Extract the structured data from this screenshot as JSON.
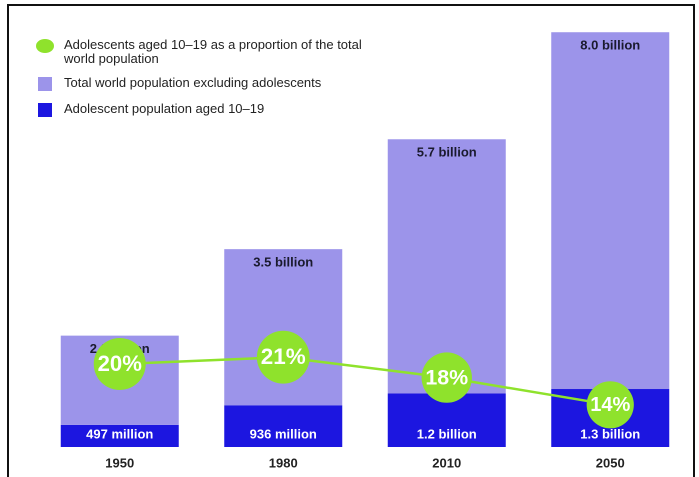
{
  "chart_data": {
    "type": "stacked_bar_line",
    "categories": [
      "1950",
      "1980",
      "2010",
      "2050"
    ],
    "series": [
      {
        "name": "Adolescents aged 10–19 as a proportion of the total world population",
        "type": "line",
        "color": "#8fe22c",
        "values": [
          20,
          21,
          18,
          14
        ],
        "value_labels": [
          "20%",
          "21%",
          "18%",
          "14%"
        ]
      },
      {
        "name": "Total world population excluding adolescents",
        "type": "bar",
        "color": "#9c94ea",
        "values": [
          2.0,
          3.5,
          5.7,
          8.0
        ],
        "value_labels": [
          "2.0 billion",
          "3.5 billion",
          "5.7 billion",
          "8.0 billion"
        ]
      },
      {
        "name": "Adolescent population aged 10–19",
        "type": "bar",
        "color": "#1c16e0",
        "values": [
          0.497,
          0.936,
          1.2,
          1.3
        ],
        "value_labels": [
          "497 million",
          "936 million",
          "1.2 billion",
          "1.3 billion"
        ]
      }
    ]
  }
}
